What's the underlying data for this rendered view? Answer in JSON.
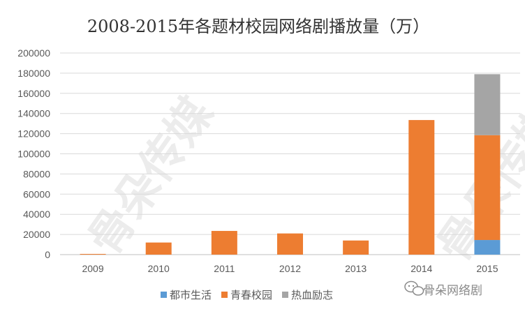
{
  "chart_data": {
    "type": "bar",
    "stacked": true,
    "title": "2008-2015年各题材校园网络剧播放量（万）",
    "categories": [
      "2009",
      "2010",
      "2011",
      "2012",
      "2013",
      "2014",
      "2015"
    ],
    "series": [
      {
        "name": "都市生活",
        "color": "#5B9BD5",
        "values": [
          0,
          0,
          0,
          0,
          0,
          0,
          14500
        ]
      },
      {
        "name": "青春校园",
        "color": "#ED7D31",
        "values": [
          700,
          12000,
          23500,
          21000,
          14000,
          133500,
          104000
        ]
      },
      {
        "name": "热血励志",
        "color": "#A5A5A5",
        "values": [
          0,
          0,
          0,
          0,
          0,
          0,
          60500
        ]
      }
    ],
    "yticks": [
      "0",
      "20000",
      "40000",
      "60000",
      "80000",
      "100000",
      "120000",
      "140000",
      "160000",
      "180000",
      "200000"
    ],
    "ylim": [
      0,
      200000
    ],
    "grid": true,
    "legend_position": "bottom"
  },
  "watermark": {
    "text": "骨朵传媒"
  },
  "brand": {
    "label": "骨朵网络剧",
    "icon": "wechat-icon"
  }
}
